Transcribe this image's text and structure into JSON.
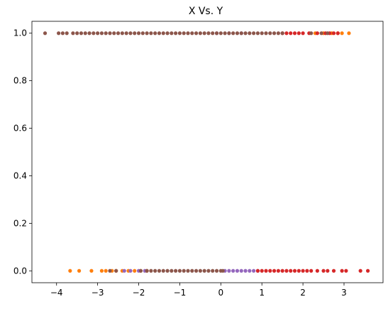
{
  "chart_data": {
    "type": "scatter",
    "title": "X Vs. Y",
    "xlabel": "",
    "ylabel": "",
    "xlim": [
      -4.6,
      3.95
    ],
    "ylim": [
      -0.05,
      1.05
    ],
    "x_ticks": [
      -4,
      -3,
      -2,
      -1,
      0,
      1,
      2,
      3
    ],
    "x_tick_labels": [
      "−4",
      "−3",
      "−2",
      "−1",
      "0",
      "1",
      "2",
      "3"
    ],
    "y_ticks": [
      0.0,
      0.2,
      0.4,
      0.6,
      0.8,
      1.0
    ],
    "y_tick_labels": [
      "0.0",
      "0.2",
      "0.4",
      "0.6",
      "0.8",
      "1.0"
    ],
    "grid": false,
    "legend": "none",
    "series": [
      {
        "color": "#ff7f0e",
        "points": [
          [
            -3.67,
            0
          ],
          [
            -3.45,
            0
          ],
          [
            -3.15,
            0
          ],
          [
            -2.9,
            0
          ],
          [
            -2.8,
            0
          ],
          [
            -2.65,
            0
          ],
          [
            -2.55,
            0
          ],
          [
            -2.4,
            0
          ],
          [
            -2.25,
            0
          ],
          [
            -2.1,
            0
          ],
          [
            -1.95,
            0
          ],
          [
            -1.8,
            0
          ],
          [
            2.7,
            1
          ],
          [
            2.85,
            1
          ],
          [
            2.95,
            1
          ],
          [
            3.12,
            1
          ],
          [
            2.5,
            1
          ],
          [
            2.3,
            1
          ]
        ]
      },
      {
        "color": "#9467bd",
        "points": [
          [
            -2.35,
            0
          ],
          [
            -2.2,
            0
          ],
          [
            -2.0,
            0
          ],
          [
            -1.85,
            0
          ],
          [
            0.1,
            0
          ],
          [
            0.2,
            0
          ],
          [
            0.3,
            0
          ],
          [
            0.4,
            0
          ],
          [
            0.5,
            0
          ],
          [
            0.6,
            0
          ],
          [
            0.7,
            0
          ],
          [
            0.8,
            0
          ],
          [
            0.9,
            0
          ],
          [
            -0.1,
            1
          ],
          [
            0.2,
            1
          ],
          [
            0.5,
            1
          ]
        ]
      },
      {
        "color": "#d62728",
        "points": [
          [
            0.9,
            0
          ],
          [
            1.0,
            0
          ],
          [
            1.1,
            0
          ],
          [
            1.2,
            0
          ],
          [
            1.3,
            0
          ],
          [
            1.4,
            0
          ],
          [
            1.5,
            0
          ],
          [
            1.6,
            0
          ],
          [
            1.7,
            0
          ],
          [
            1.8,
            0
          ],
          [
            1.9,
            0
          ],
          [
            2.0,
            0
          ],
          [
            2.1,
            0
          ],
          [
            2.2,
            0
          ],
          [
            2.35,
            0
          ],
          [
            2.5,
            0
          ],
          [
            2.6,
            0
          ],
          [
            2.75,
            0
          ],
          [
            2.95,
            0
          ],
          [
            3.05,
            0
          ],
          [
            3.4,
            0
          ],
          [
            3.58,
            0
          ],
          [
            1.5,
            1
          ],
          [
            1.6,
            1
          ],
          [
            1.7,
            1
          ],
          [
            1.8,
            1
          ],
          [
            1.9,
            1
          ],
          [
            2.0,
            1
          ],
          [
            2.15,
            1
          ],
          [
            2.35,
            1
          ],
          [
            2.55,
            1
          ],
          [
            2.65,
            1
          ],
          [
            2.75,
            1
          ],
          [
            2.85,
            1
          ]
        ]
      },
      {
        "color": "#8c564b",
        "points": [
          [
            -4.28,
            1
          ],
          [
            -3.95,
            1
          ],
          [
            -3.85,
            1
          ],
          [
            -3.75,
            1
          ],
          [
            -3.6,
            1
          ],
          [
            -3.5,
            1
          ],
          [
            -3.4,
            1
          ],
          [
            -3.3,
            1
          ],
          [
            -3.2,
            1
          ],
          [
            -3.1,
            1
          ],
          [
            -3.0,
            1
          ],
          [
            -2.9,
            1
          ],
          [
            -2.8,
            1
          ],
          [
            -2.7,
            1
          ],
          [
            -2.6,
            1
          ],
          [
            -2.5,
            1
          ],
          [
            -2.4,
            1
          ],
          [
            -2.3,
            1
          ],
          [
            -2.2,
            1
          ],
          [
            -2.1,
            1
          ],
          [
            -2.0,
            1
          ],
          [
            -1.9,
            1
          ],
          [
            -1.8,
            1
          ],
          [
            -1.7,
            1
          ],
          [
            -1.6,
            1
          ],
          [
            -1.5,
            1
          ],
          [
            -1.4,
            1
          ],
          [
            -1.3,
            1
          ],
          [
            -1.2,
            1
          ],
          [
            -1.1,
            1
          ],
          [
            -1.0,
            1
          ],
          [
            -0.9,
            1
          ],
          [
            -0.8,
            1
          ],
          [
            -0.7,
            1
          ],
          [
            -0.6,
            1
          ],
          [
            -0.5,
            1
          ],
          [
            -0.4,
            1
          ],
          [
            -0.3,
            1
          ],
          [
            -0.2,
            1
          ],
          [
            -0.1,
            1
          ],
          [
            0.0,
            1
          ],
          [
            0.1,
            1
          ],
          [
            0.2,
            1
          ],
          [
            0.3,
            1
          ],
          [
            0.4,
            1
          ],
          [
            0.5,
            1
          ],
          [
            0.6,
            1
          ],
          [
            0.7,
            1
          ],
          [
            0.8,
            1
          ],
          [
            0.9,
            1
          ],
          [
            1.0,
            1
          ],
          [
            1.1,
            1
          ],
          [
            1.2,
            1
          ],
          [
            1.3,
            1
          ],
          [
            1.4,
            1
          ],
          [
            1.5,
            1
          ],
          [
            2.2,
            1
          ],
          [
            2.45,
            1
          ],
          [
            2.6,
            1
          ],
          [
            -2.7,
            0
          ],
          [
            -2.55,
            0
          ],
          [
            -1.95,
            0
          ],
          [
            -1.8,
            0
          ],
          [
            -1.7,
            0
          ],
          [
            -1.6,
            0
          ],
          [
            -1.5,
            0
          ],
          [
            -1.4,
            0
          ],
          [
            -1.3,
            0
          ],
          [
            -1.2,
            0
          ],
          [
            -1.1,
            0
          ],
          [
            -1.0,
            0
          ],
          [
            -0.9,
            0
          ],
          [
            -0.8,
            0
          ],
          [
            -0.7,
            0
          ],
          [
            -0.6,
            0
          ],
          [
            -0.5,
            0
          ],
          [
            -0.4,
            0
          ],
          [
            -0.3,
            0
          ],
          [
            -0.2,
            0
          ],
          [
            -0.1,
            0
          ],
          [
            0.0,
            0
          ],
          [
            0.05,
            0
          ]
        ]
      }
    ]
  }
}
